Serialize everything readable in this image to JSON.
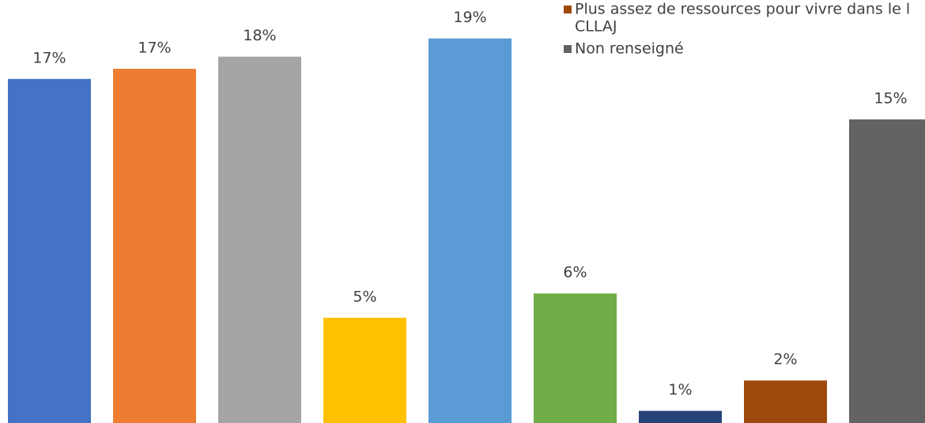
{
  "chart_data": {
    "type": "bar",
    "categories": [
      null,
      null,
      null,
      null,
      null,
      null,
      null,
      null,
      null
    ],
    "values": [
      17.0,
      17.5,
      18.1,
      5.2,
      19.0,
      6.4,
      0.6,
      2.1,
      15.0
    ],
    "value_labels": [
      "17%",
      "17%",
      "18%",
      "5%",
      "19%",
      "6%",
      "1%",
      "2%",
      "15%"
    ],
    "colors": [
      "#4472c4",
      "#ed7d31",
      "#a5a5a5",
      "#ffc000",
      "#5b9bd5",
      "#70ad47",
      "#264478",
      "#9e480e",
      "#636363"
    ],
    "ylim": [
      0,
      20.9
    ],
    "legend": [
      {
        "lines": [
          "Plus assez de ressources pour vivre dans le l",
          "CLLAJ"
        ],
        "color": "#9e480e"
      },
      {
        "lines": [
          "Non renseigné"
        ],
        "color": "#636363"
      }
    ]
  }
}
